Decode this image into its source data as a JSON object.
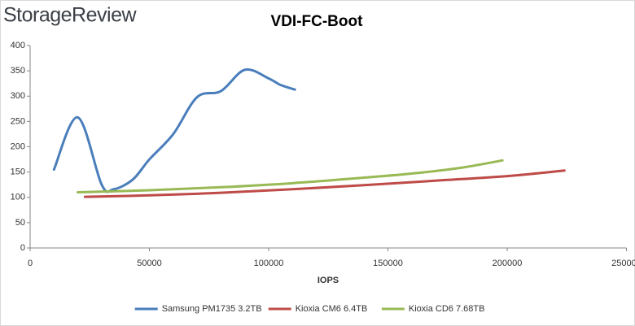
{
  "brand": "StorageReview",
  "chart_data": {
    "type": "line",
    "title": "VDI-FC-Boot",
    "x_label": "IOPS",
    "xlim": [
      0,
      250000
    ],
    "xticks": [
      0,
      50000,
      100000,
      150000,
      200000,
      250000
    ],
    "ylim": [
      0,
      400
    ],
    "yticks": [
      0,
      50,
      100,
      150,
      200,
      250,
      300,
      350,
      400
    ],
    "grid": false,
    "legend": "bottom",
    "smooth": true,
    "series": [
      {
        "name": "Samsung PM1735 3.2TB",
        "color": "#4a7ebb",
        "x": [
          10000,
          20000,
          30000,
          35000,
          43000,
          50000,
          60000,
          70000,
          80000,
          90000,
          100000,
          105000,
          111000
        ],
        "values": [
          155,
          258,
          125,
          116,
          135,
          175,
          225,
          298,
          310,
          352,
          335,
          322,
          313
        ]
      },
      {
        "name": "Kioxia CM6 6.4TB",
        "color": "#be4b48",
        "x": [
          23000,
          50000,
          80000,
          110000,
          140000,
          170000,
          200000,
          224000
        ],
        "values": [
          101,
          104,
          109,
          116,
          124,
          133,
          142,
          153
        ]
      },
      {
        "name": "Kioxia CD6 7.68TB",
        "color": "#98b954",
        "x": [
          20000,
          50000,
          80000,
          110000,
          140000,
          160000,
          180000,
          198000
        ],
        "values": [
          110,
          114,
          120,
          128,
          139,
          147,
          158,
          173
        ]
      }
    ]
  }
}
